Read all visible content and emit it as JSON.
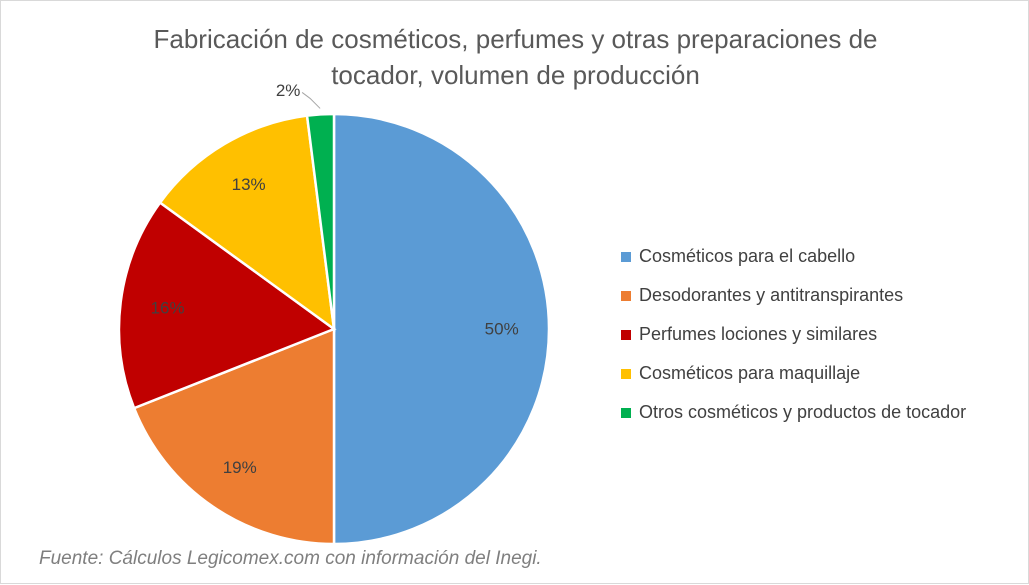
{
  "chart_data": {
    "type": "pie",
    "title_lines": [
      "Fabricación de cosméticos, perfumes y otras preparaciones de",
      "tocador, volumen de producción"
    ],
    "categories": [
      "Cosméticos para el cabello",
      "Desodorantes y antitranspirantes",
      "Perfumes lociones y similares",
      "Cosméticos para maquillaje",
      "Otros cosméticos y productos de tocador"
    ],
    "values": [
      50,
      19,
      16,
      13,
      2
    ],
    "data_labels": [
      "50%",
      "19%",
      "16%",
      "13%",
      "2%"
    ],
    "colors": [
      "#5b9bd5",
      "#ed7d31",
      "#c00000",
      "#ffc000",
      "#00b050"
    ],
    "legend_position": "right",
    "start_angle": "top, clockwise"
  },
  "source_note": "Fuente: Cálculos Legicomex.com con información del Inegi."
}
